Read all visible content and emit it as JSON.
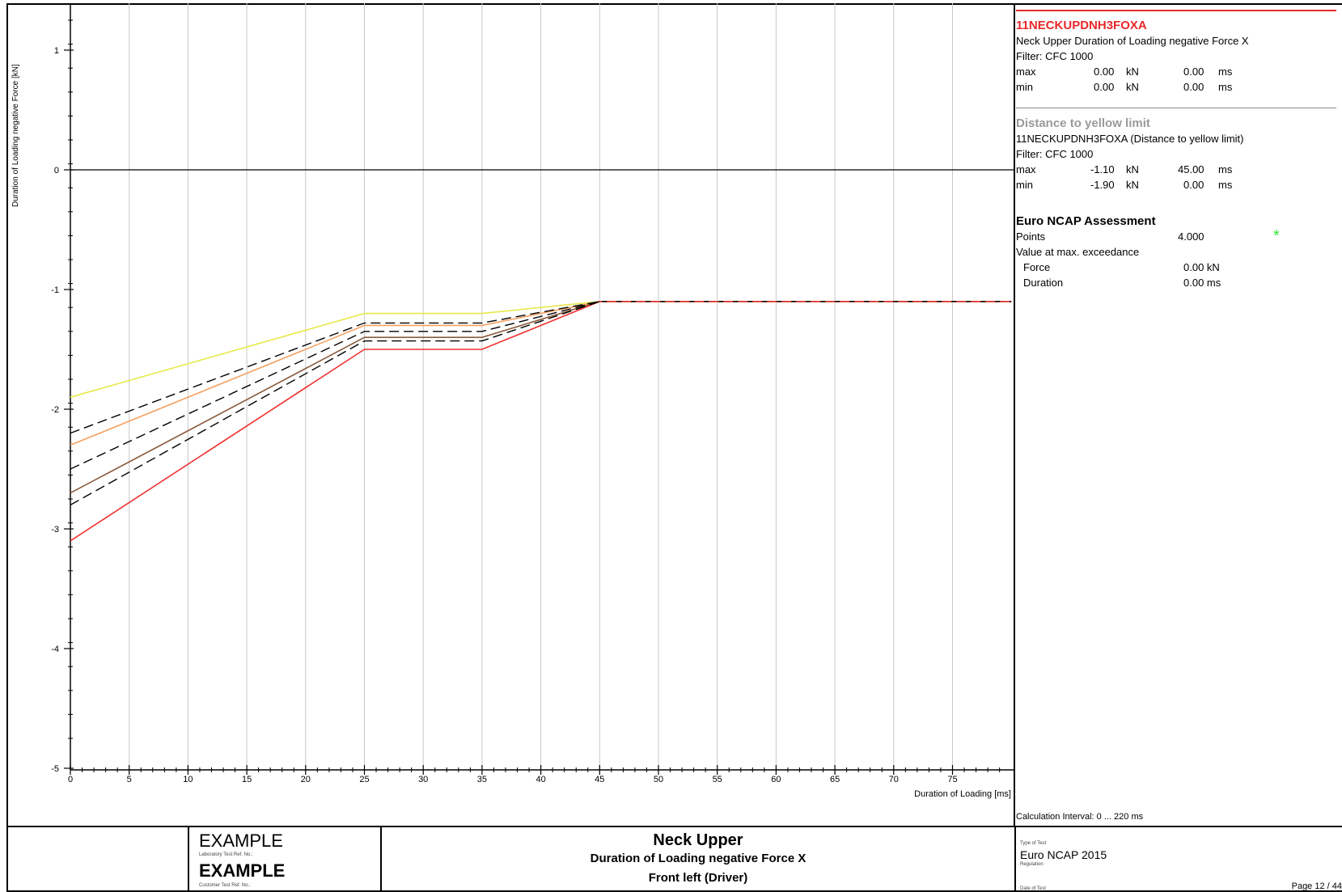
{
  "chart_data": {
    "type": "line",
    "title": "",
    "xlabel": "Duration of Loading  [ms]",
    "ylabel": "Duration of Loading negative Force  [kN]",
    "xlim": [
      0,
      80
    ],
    "ylim": [
      -5,
      1.4
    ],
    "x_ticks": [
      0,
      5,
      10,
      15,
      20,
      25,
      30,
      35,
      40,
      45,
      50,
      55,
      60,
      65,
      70,
      75
    ],
    "y_ticks": [
      1,
      0,
      -1,
      -2,
      -3,
      -4,
      -5
    ],
    "grid": true,
    "series": [
      {
        "color": "#e8e84a",
        "style": "solid",
        "x": [
          0,
          25,
          35,
          45,
          80
        ],
        "y": [
          -1.9,
          -1.2,
          -1.2,
          -1.1,
          -1.1
        ]
      },
      {
        "color": "#f4a060",
        "style": "solid",
        "x": [
          0,
          25,
          35,
          45,
          80
        ],
        "y": [
          -2.3,
          -1.3,
          -1.3,
          -1.1,
          -1.1
        ]
      },
      {
        "color": "#8b5a3c",
        "style": "solid",
        "x": [
          0,
          25,
          35,
          45,
          80
        ],
        "y": [
          -2.7,
          -1.4,
          -1.4,
          -1.1,
          -1.1
        ]
      },
      {
        "color": "#f03030",
        "style": "solid",
        "x": [
          0,
          25,
          35,
          45,
          80
        ],
        "y": [
          -3.1,
          -1.5,
          -1.5,
          -1.1,
          -1.1
        ]
      },
      {
        "color": "#000000",
        "style": "dashed",
        "x": [
          0,
          25,
          35,
          45,
          80
        ],
        "y": [
          -2.2,
          -1.28,
          -1.28,
          -1.1,
          -1.1
        ]
      },
      {
        "color": "#000000",
        "style": "dashed",
        "x": [
          0,
          25,
          35,
          45,
          80
        ],
        "y": [
          -2.5,
          -1.35,
          -1.35,
          -1.1,
          -1.1
        ]
      },
      {
        "color": "#000000",
        "style": "dashed",
        "x": [
          0,
          25,
          35,
          45,
          80
        ],
        "y": [
          -2.8,
          -1.43,
          -1.43,
          -1.1,
          -1.1
        ]
      }
    ]
  },
  "info": {
    "channel_title": "11NECKUPDNH3FOXA",
    "channel_desc": "Neck Upper Duration of Loading negative Force X",
    "filter1": "Filter:  CFC 1000",
    "max1": [
      "max",
      "0.00",
      "kN",
      "0.00",
      "ms"
    ],
    "min1": [
      "min",
      "0.00",
      "kN",
      "0.00",
      "ms"
    ],
    "limit_title": "Distance to yellow limit",
    "limit_desc": "11NECKUPDNH3FOXA (Distance to yellow limit)",
    "filter2": "Filter:  CFC 1000",
    "max2": [
      "max",
      "-1.10",
      "kN",
      "45.00",
      "ms"
    ],
    "min2": [
      "min",
      "-1.90",
      "kN",
      "0.00",
      "ms"
    ],
    "assess_title": "Euro NCAP Assessment",
    "points_label": "Points",
    "points_value": "4.000",
    "star_color": "#3adf3a",
    "exceed_label": "Value at max. exceedance",
    "force_label": "Force",
    "force_value": "0.00  kN",
    "duration_label": "Duration",
    "duration_value": "0.00  ms",
    "calc_interval": "Calculation Interval: 0 ... 220 ms"
  },
  "footer": {
    "lab_name": "EXAMPLE",
    "lab_label": "Laboratory Test Ref. No.:",
    "cust_name": "EXAMPLE",
    "cust_label": "Customer Test Ref. No.:",
    "main_title": "Neck Upper",
    "sub_title": "Duration of Loading negative Force X",
    "position": "Front left (Driver)",
    "type_label": "Type of Test",
    "type_value": "Euro NCAP 2015",
    "regulation_label": "Regulation",
    "date_label": "Date of Test",
    "page": "Page 12 / 44"
  }
}
